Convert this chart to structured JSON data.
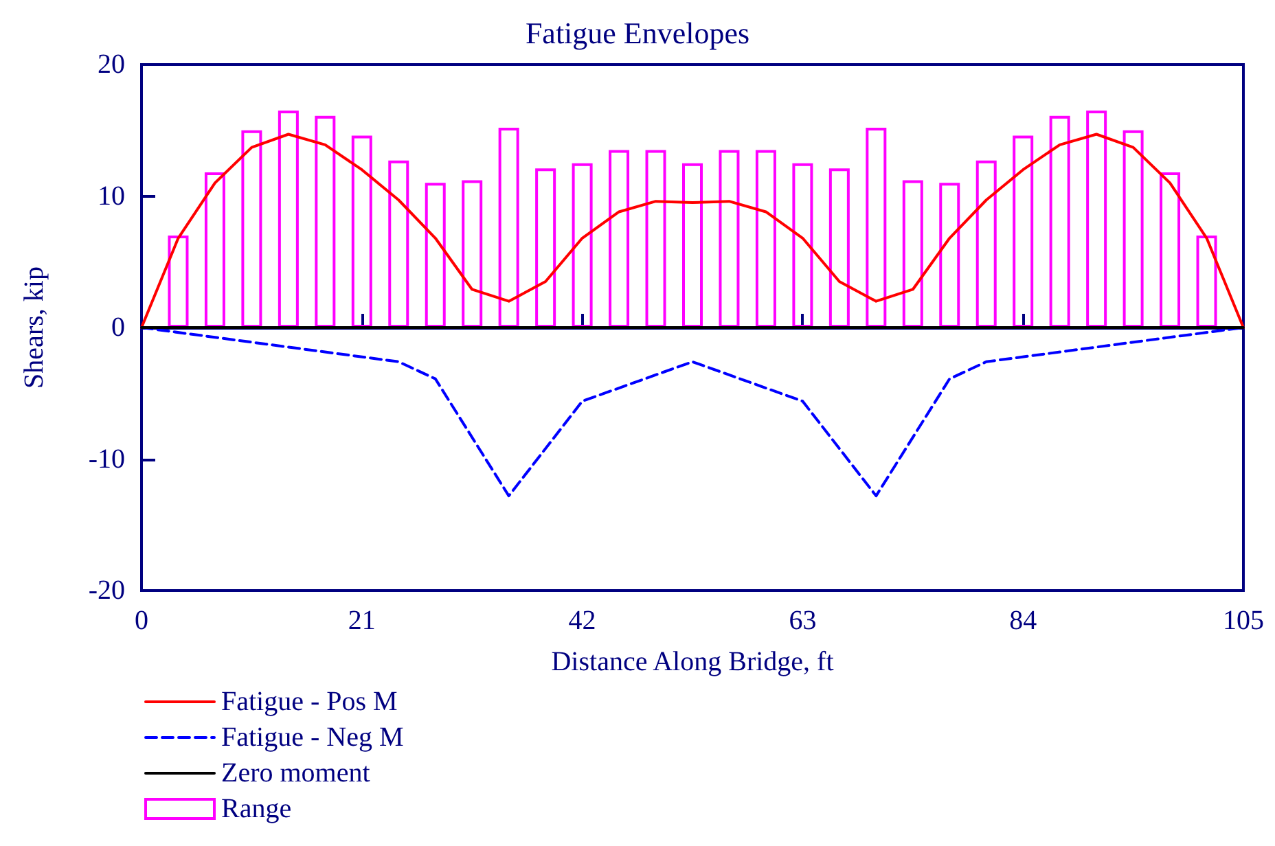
{
  "chart_data": {
    "type": "line",
    "title": "Fatigue Envelopes",
    "xlabel": "Distance Along Bridge, ft",
    "ylabel": "Shears, kip",
    "xlim": [
      0,
      105
    ],
    "xticks": [
      0,
      21,
      42,
      63,
      84,
      105
    ],
    "ylim": [
      -20,
      20
    ],
    "yticks": [
      -20,
      -10,
      0,
      10,
      20
    ],
    "grid": false,
    "legend": "bottom left",
    "marker": "none",
    "series": [
      {
        "name": "Fatigue - Pos M",
        "color": "#ff0000",
        "line_style": "solid",
        "x": [
          0,
          3.5,
          7,
          10.5,
          14,
          17.5,
          21,
          24.5,
          28,
          31.5,
          35,
          38.5,
          42,
          45.5,
          49,
          52.5,
          56,
          59.5,
          63,
          66.5,
          70,
          73.5,
          77,
          80.5,
          84,
          87.5,
          91,
          94.5,
          98,
          101.5,
          105
        ],
        "values": [
          0,
          6.8,
          11.0,
          13.7,
          14.7,
          13.9,
          12.0,
          9.7,
          6.8,
          2.9,
          2.0,
          3.5,
          6.8,
          8.8,
          9.6,
          9.5,
          9.6,
          8.8,
          6.8,
          3.5,
          2.0,
          2.9,
          6.8,
          9.7,
          12.0,
          13.9,
          14.7,
          13.7,
          11.0,
          6.8,
          0
        ]
      },
      {
        "name": "Fatigue - Neg M",
        "color": "#0000ff",
        "line_style": "dashed",
        "x": [
          0,
          24.5,
          28,
          35,
          42,
          52.5,
          63,
          70,
          77,
          80.5,
          105
        ],
        "values": [
          0,
          -2.6,
          -3.9,
          -12.8,
          -5.6,
          -2.6,
          -5.6,
          -12.8,
          -3.9,
          -2.6,
          0
        ]
      },
      {
        "name": "Zero moment",
        "color": "#000000",
        "line_style": "solid",
        "x": [
          0,
          105
        ],
        "values": [
          0,
          0
        ]
      },
      {
        "name": "Range",
        "type": "bar",
        "color": "#ff00ff",
        "x": [
          3.5,
          7,
          10.5,
          14,
          17.5,
          21,
          24.5,
          28,
          31.5,
          35,
          38.5,
          42,
          45.5,
          49,
          52.5,
          56,
          59.5,
          63,
          66.5,
          70,
          73.5,
          77,
          80.5,
          84,
          87.5,
          91,
          94.5,
          98,
          101.5
        ],
        "values": [
          7.0,
          11.8,
          15.0,
          16.5,
          16.1,
          14.6,
          12.7,
          11.0,
          11.2,
          15.2,
          12.1,
          12.5,
          13.5,
          13.5,
          12.5,
          13.5,
          13.5,
          12.5,
          12.1,
          15.2,
          11.2,
          11.0,
          12.7,
          14.6,
          16.1,
          16.5,
          15.0,
          11.8,
          7.0
        ]
      }
    ]
  }
}
